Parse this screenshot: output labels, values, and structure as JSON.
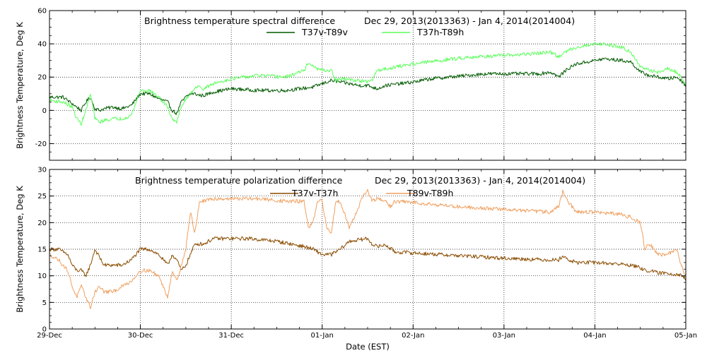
{
  "chart_data": [
    {
      "type": "line",
      "title": "Brightness temperature spectral difference",
      "subtitle": "Dec 29, 2013(2013363) - Jan  4, 2014(2014004)",
      "ylabel": "Brightness Temperature, Deg K",
      "xlabel": "",
      "ylim": [
        -30,
        60
      ],
      "yticks": [
        -20,
        0,
        20,
        40,
        60
      ],
      "xlim": [
        0,
        7
      ],
      "grid": true,
      "legend_placement": "top-center",
      "series": [
        {
          "name": "T37v-T89v",
          "color": "#005a00",
          "x": [
            0,
            0.15,
            0.25,
            0.3,
            0.35,
            0.4,
            0.45,
            0.5,
            0.55,
            0.6,
            0.7,
            0.8,
            0.9,
            1.0,
            1.1,
            1.2,
            1.3,
            1.35,
            1.4,
            1.45,
            1.5,
            1.55,
            1.6,
            1.65,
            1.7,
            1.8,
            2.0,
            2.3,
            2.6,
            2.9,
            3.0,
            3.1,
            3.2,
            3.4,
            3.5,
            3.55,
            3.6,
            3.7,
            4.0,
            4.2,
            4.4,
            4.6,
            4.8,
            5.0,
            5.2,
            5.4,
            5.5,
            5.55,
            5.6,
            5.7,
            5.8,
            5.9,
            6.0,
            6.1,
            6.3,
            6.4,
            6.5,
            6.6,
            6.7,
            6.8,
            6.9,
            6.95,
            7.0
          ],
          "values": [
            8,
            8,
            4,
            2,
            0,
            5,
            8,
            1,
            0,
            1,
            2,
            1,
            3,
            10,
            10,
            7,
            5,
            0,
            -2,
            5,
            8,
            10,
            10,
            9,
            9,
            11,
            13,
            12,
            12,
            14,
            16,
            18,
            17,
            15,
            15,
            14,
            13,
            15,
            17,
            19,
            20,
            21,
            22,
            22,
            22,
            22,
            23,
            22,
            20,
            25,
            28,
            29,
            30,
            31,
            30,
            29,
            23,
            21,
            20,
            19,
            20,
            18,
            15
          ]
        },
        {
          "name": "T37h-T89h",
          "color": "#5aff5a",
          "x": [
            0,
            0.15,
            0.25,
            0.3,
            0.35,
            0.4,
            0.45,
            0.5,
            0.55,
            0.6,
            0.7,
            0.8,
            0.9,
            1.0,
            1.1,
            1.2,
            1.3,
            1.35,
            1.4,
            1.45,
            1.5,
            1.55,
            1.6,
            1.65,
            1.7,
            1.8,
            2.0,
            2.3,
            2.6,
            2.8,
            2.85,
            2.9,
            3.0,
            3.1,
            3.15,
            3.2,
            3.4,
            3.5,
            3.55,
            3.6,
            3.7,
            4.0,
            4.3,
            4.6,
            5.0,
            5.3,
            5.5,
            5.55,
            5.6,
            5.7,
            5.8,
            5.9,
            6.0,
            6.1,
            6.2,
            6.3,
            6.4,
            6.5,
            6.6,
            6.7,
            6.8,
            6.9,
            6.95,
            7.0
          ],
          "values": [
            6,
            5,
            2,
            -5,
            -8,
            0,
            10,
            -5,
            -7,
            -6,
            -5,
            -5,
            -3,
            12,
            12,
            8,
            2,
            -5,
            -7,
            2,
            7,
            10,
            14,
            14,
            13,
            16,
            19,
            21,
            20,
            24,
            29,
            26,
            24,
            24,
            18,
            19,
            18,
            17,
            18,
            24,
            25,
            28,
            30,
            32,
            33,
            34,
            35,
            34,
            32,
            36,
            38,
            39,
            40,
            40,
            39,
            38,
            35,
            26,
            24,
            23,
            25,
            23,
            20,
            15
          ]
        }
      ]
    },
    {
      "type": "line",
      "title": "Brightness temperature polarization difference",
      "subtitle": "Dec 29, 2013(2013363) - Jan  4, 2014(2014004)",
      "ylabel": "Brightness Temperature, Deg K",
      "xlabel": "Date (EST)",
      "ylim": [
        0,
        30
      ],
      "yticks": [
        0,
        5,
        10,
        15,
        20,
        25,
        30
      ],
      "xlim": [
        0,
        7
      ],
      "xticks": [
        "29-Dec",
        "30-Dec",
        "31-Dec",
        "01-Jan",
        "02-Jan",
        "03-Jan",
        "04-Jan",
        "05-Jan"
      ],
      "grid": true,
      "legend_placement": "top-center",
      "series": [
        {
          "name": "T37v-T37h",
          "color": "#8b4c00",
          "x": [
            0,
            0.1,
            0.2,
            0.25,
            0.3,
            0.35,
            0.4,
            0.45,
            0.5,
            0.6,
            0.7,
            0.8,
            0.9,
            1.0,
            1.1,
            1.2,
            1.25,
            1.3,
            1.35,
            1.4,
            1.45,
            1.5,
            1.6,
            1.7,
            1.8,
            2.0,
            2.2,
            2.5,
            2.8,
            2.9,
            3.0,
            3.1,
            3.2,
            3.3,
            3.5,
            3.55,
            3.6,
            3.7,
            3.8,
            4.0,
            4.5,
            5.0,
            5.5,
            5.6,
            5.65,
            5.7,
            5.8,
            6.0,
            6.2,
            6.4,
            6.5,
            6.55,
            6.6,
            6.7,
            6.8,
            6.9,
            6.95,
            7.0
          ],
          "values": [
            15,
            15,
            14,
            12,
            11,
            11,
            10,
            12,
            15,
            12,
            12,
            12,
            13,
            15,
            15,
            14,
            13,
            12,
            14,
            13,
            11,
            12,
            16,
            16,
            17,
            17,
            17,
            16.5,
            15.5,
            15,
            14,
            14,
            15,
            16.5,
            17,
            16,
            15.5,
            15.8,
            14.5,
            14.3,
            13.8,
            13.3,
            13,
            13,
            13.8,
            13,
            12.5,
            12.5,
            12.3,
            12,
            11.5,
            11,
            11,
            10.5,
            10.5,
            10.3,
            10.2,
            9.3
          ]
        },
        {
          "name": "T89v-T89h",
          "color": "#f0a060",
          "x": [
            0,
            0.1,
            0.2,
            0.25,
            0.3,
            0.35,
            0.4,
            0.45,
            0.5,
            0.55,
            0.6,
            0.7,
            0.8,
            0.9,
            1.0,
            1.1,
            1.2,
            1.25,
            1.3,
            1.35,
            1.4,
            1.45,
            1.5,
            1.55,
            1.6,
            1.65,
            1.7,
            1.8,
            2.0,
            2.3,
            2.6,
            2.8,
            2.85,
            2.9,
            2.95,
            3.0,
            3.05,
            3.1,
            3.15,
            3.2,
            3.3,
            3.4,
            3.45,
            3.5,
            3.55,
            3.6,
            3.7,
            3.75,
            3.8,
            4.0,
            4.5,
            5.0,
            5.5,
            5.6,
            5.65,
            5.7,
            5.8,
            6.0,
            6.3,
            6.4,
            6.5,
            6.55,
            6.6,
            6.7,
            6.8,
            6.9,
            6.95,
            7.0
          ],
          "values": [
            14,
            13,
            11,
            8,
            6,
            8,
            6,
            4,
            7,
            8,
            7,
            7,
            8,
            9,
            11,
            11,
            10,
            8,
            6,
            11,
            9,
            12,
            15,
            22,
            18,
            24,
            24,
            24.5,
            24.5,
            24.5,
            24,
            24,
            19,
            20,
            24,
            24,
            19,
            18,
            24,
            24,
            19,
            23,
            25,
            26,
            24,
            24.5,
            24,
            23,
            24,
            23.8,
            23,
            22.5,
            22,
            23,
            26,
            24,
            22,
            22,
            21.5,
            21,
            20,
            15,
            16,
            14,
            14,
            15,
            12,
            10
          ]
        }
      ]
    }
  ]
}
